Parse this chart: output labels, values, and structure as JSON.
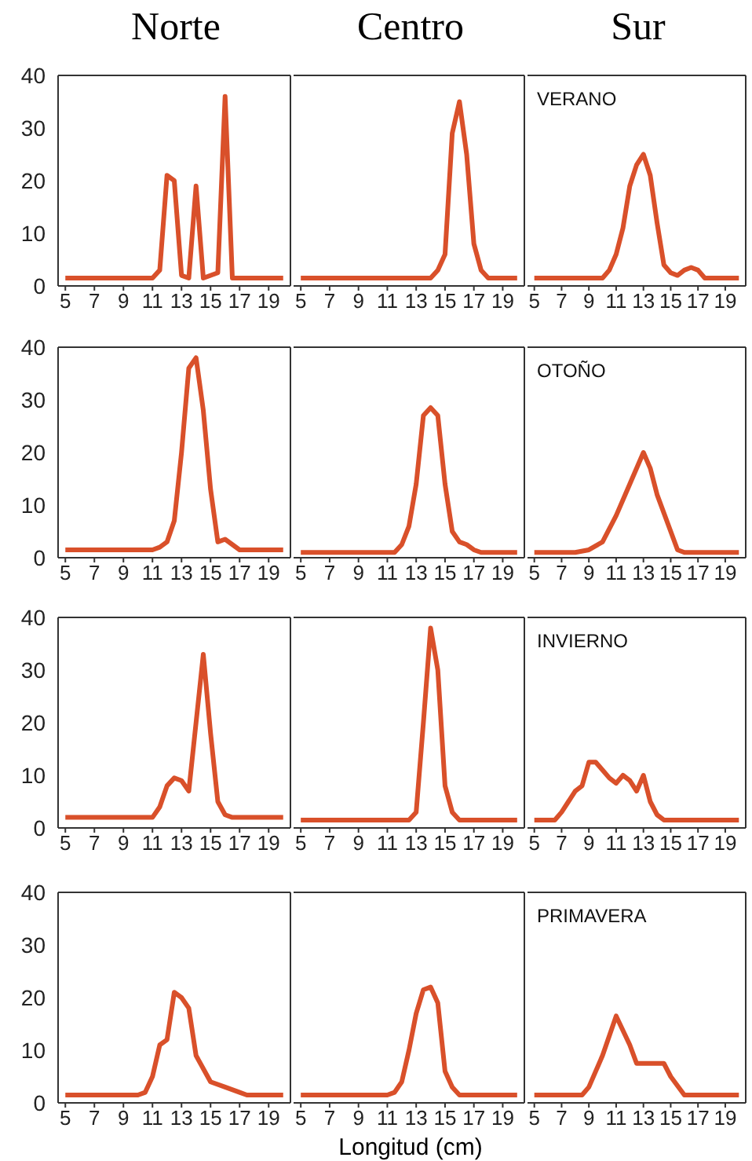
{
  "chart_data": [
    {
      "type": "line",
      "title": "Norte",
      "x": [
        5,
        11,
        11.5,
        12,
        12.5,
        13,
        13.5,
        14,
        14.5,
        15.5,
        16,
        16.5,
        20
      ],
      "values": [
        1.5,
        1.5,
        3,
        21,
        20,
        2,
        1.5,
        19,
        1.5,
        2.5,
        36,
        1.5,
        1.5
      ],
      "color": "#d9502a",
      "xlim": [
        4.5,
        20.5
      ],
      "xticks": [
        5,
        7,
        9,
        11,
        13,
        15,
        17,
        19
      ],
      "ylim": [
        0,
        40
      ],
      "yticks": [
        0,
        10,
        20,
        30,
        40
      ]
    },
    {
      "type": "line",
      "title": "Centro",
      "x": [
        5,
        14,
        14.5,
        15,
        15.5,
        16,
        16.5,
        17,
        17.5,
        18,
        20
      ],
      "values": [
        1.5,
        1.5,
        3,
        6,
        29,
        35,
        25,
        8,
        3,
        1.5,
        1.5
      ],
      "color": "#d9502a",
      "xlim": [
        4.5,
        20.5
      ],
      "xticks": [
        5,
        7,
        9,
        11,
        13,
        15,
        17,
        19
      ],
      "ylim": [
        0,
        40
      ],
      "yticks": [
        0,
        10,
        20,
        30,
        40
      ],
      "tick_labels": "x"
    },
    {
      "type": "line",
      "title": "Sur",
      "annotations": [
        "VERANO"
      ],
      "x": [
        5,
        10,
        10.5,
        11,
        11.5,
        12,
        12.5,
        13,
        13.5,
        14,
        14.5,
        15,
        15.5,
        16,
        16.5,
        17,
        17.5,
        20
      ],
      "values": [
        1.5,
        1.5,
        3,
        6,
        11,
        19,
        23,
        25,
        21,
        12,
        4,
        2.5,
        2,
        3,
        3.5,
        3,
        1.5,
        1.5
      ],
      "color": "#d9502a",
      "xlim": [
        4.5,
        20.5
      ],
      "xticks": [
        5,
        7,
        9,
        11,
        13,
        15,
        17,
        19
      ],
      "ylim": [
        0,
        40
      ],
      "yticks": [
        0,
        10,
        20,
        30,
        40
      ],
      "tick_labels": "x"
    },
    {
      "type": "line",
      "x": [
        5,
        11,
        11.5,
        12,
        12.5,
        13,
        13.5,
        14,
        14.5,
        15,
        15.5,
        16,
        16.5,
        17,
        20
      ],
      "values": [
        1.5,
        1.5,
        2,
        3,
        7,
        20,
        36,
        38,
        28,
        13,
        3,
        3.5,
        2.5,
        1.5,
        1.5
      ],
      "color": "#d9502a",
      "xlim": [
        4.5,
        20.5
      ],
      "xticks": [
        5,
        7,
        9,
        11,
        13,
        15,
        17,
        19
      ],
      "ylim": [
        0,
        40
      ],
      "yticks": [
        0,
        10,
        20,
        30,
        40
      ]
    },
    {
      "type": "line",
      "x": [
        5,
        11.5,
        12,
        12.5,
        13,
        13.5,
        14,
        14.5,
        15,
        15.5,
        16,
        16.5,
        17,
        17.5,
        20
      ],
      "values": [
        1,
        1,
        2.5,
        6,
        14,
        27,
        28.5,
        27,
        14,
        5,
        3,
        2.5,
        1.5,
        1,
        1
      ],
      "color": "#d9502a",
      "xlim": [
        4.5,
        20.5
      ],
      "xticks": [
        5,
        7,
        9,
        11,
        13,
        15,
        17,
        19
      ],
      "ylim": [
        0,
        40
      ],
      "yticks": [
        0,
        10,
        20,
        30,
        40
      ],
      "tick_labels": "x"
    },
    {
      "type": "line",
      "annotations": [
        "OTOÑO"
      ],
      "x": [
        5,
        8,
        9,
        10,
        11,
        12,
        13,
        13.5,
        14,
        15,
        15.5,
        16,
        20
      ],
      "values": [
        1,
        1,
        1.5,
        3,
        8,
        14,
        20,
        17,
        12,
        5,
        1.5,
        1,
        1
      ],
      "color": "#d9502a",
      "xlim": [
        4.5,
        20.5
      ],
      "xticks": [
        5,
        7,
        9,
        11,
        13,
        15,
        17,
        19
      ],
      "ylim": [
        0,
        40
      ],
      "yticks": [
        0,
        10,
        20,
        30,
        40
      ],
      "tick_labels": "x"
    },
    {
      "type": "line",
      "x": [
        5,
        11,
        11.5,
        12,
        12.5,
        13,
        13.5,
        14,
        14.5,
        15,
        15.5,
        16,
        16.5,
        20
      ],
      "values": [
        2,
        2,
        4,
        8,
        9.5,
        9,
        7,
        20,
        33,
        18,
        5,
        2.5,
        2,
        2
      ],
      "color": "#d9502a",
      "xlim": [
        4.5,
        20.5
      ],
      "xticks": [
        5,
        7,
        9,
        11,
        13,
        15,
        17,
        19
      ],
      "ylim": [
        0,
        40
      ],
      "yticks": [
        0,
        10,
        20,
        30,
        40
      ]
    },
    {
      "type": "line",
      "x": [
        5,
        12.5,
        13,
        13.5,
        14,
        14.5,
        15,
        15.5,
        16,
        20
      ],
      "values": [
        1.5,
        1.5,
        3,
        20,
        38,
        30,
        8,
        3,
        1.5,
        1.5
      ],
      "color": "#d9502a",
      "xlim": [
        4.5,
        20.5
      ],
      "xticks": [
        5,
        7,
        9,
        11,
        13,
        15,
        17,
        19
      ],
      "ylim": [
        0,
        40
      ],
      "yticks": [
        0,
        10,
        20,
        30,
        40
      ],
      "tick_labels": "x"
    },
    {
      "type": "line",
      "annotations": [
        "INVIERNO"
      ],
      "x": [
        5,
        6.5,
        7,
        7.5,
        8,
        8.5,
        9,
        9.5,
        10,
        10.5,
        11,
        11.5,
        12,
        12.5,
        13,
        13.5,
        14,
        14.5,
        20
      ],
      "values": [
        1.5,
        1.5,
        3,
        5,
        7,
        8,
        12.5,
        12.5,
        11,
        9.5,
        8.5,
        10,
        9,
        7,
        10,
        5,
        2.5,
        1.5,
        1.5
      ],
      "color": "#d9502a",
      "xlim": [
        4.5,
        20.5
      ],
      "xticks": [
        5,
        7,
        9,
        11,
        13,
        15,
        17,
        19
      ],
      "ylim": [
        0,
        40
      ],
      "yticks": [
        0,
        10,
        20,
        30,
        40
      ],
      "tick_labels": "x"
    },
    {
      "type": "line",
      "x": [
        5,
        10,
        10.5,
        11,
        11.5,
        12,
        12.5,
        13,
        13.5,
        14,
        14.5,
        15,
        16,
        17,
        17.5,
        20
      ],
      "values": [
        1.5,
        1.5,
        2,
        5,
        11,
        12,
        21,
        20,
        18,
        9,
        6.5,
        4,
        3,
        2,
        1.5,
        1.5
      ],
      "color": "#d9502a",
      "xlim": [
        4.5,
        20.5
      ],
      "xticks": [
        5,
        7,
        9,
        11,
        13,
        15,
        17,
        19
      ],
      "ylim": [
        0,
        40
      ],
      "yticks": [
        0,
        10,
        20,
        30,
        40
      ]
    },
    {
      "type": "line",
      "xlabel": "Longitud (cm)",
      "x": [
        5,
        11,
        11.5,
        12,
        12.5,
        13,
        13.5,
        14,
        14.5,
        15,
        15.5,
        16,
        20
      ],
      "values": [
        1.5,
        1.5,
        2,
        4,
        10,
        17,
        21.5,
        22,
        19,
        6,
        3,
        1.5,
        1.5
      ],
      "color": "#d9502a",
      "xlim": [
        4.5,
        20.5
      ],
      "xticks": [
        5,
        7,
        9,
        11,
        13,
        15,
        17,
        19
      ],
      "ylim": [
        0,
        40
      ],
      "yticks": [
        0,
        10,
        20,
        30,
        40
      ],
      "tick_labels": "x"
    },
    {
      "type": "line",
      "annotations": [
        "PRIMAVERA"
      ],
      "x": [
        5,
        8.5,
        9,
        10,
        11,
        12,
        12.5,
        14.5,
        15,
        16,
        20
      ],
      "values": [
        1.5,
        1.5,
        3,
        9,
        16.5,
        11,
        7.5,
        7.5,
        5,
        1.5,
        1.5
      ],
      "color": "#d9502a",
      "xlim": [
        4.5,
        20.5
      ],
      "xticks": [
        5,
        7,
        9,
        11,
        13,
        15,
        17,
        19
      ],
      "ylim": [
        0,
        40
      ],
      "yticks": [
        0,
        10,
        20,
        30,
        40
      ],
      "tick_labels": "x"
    }
  ]
}
